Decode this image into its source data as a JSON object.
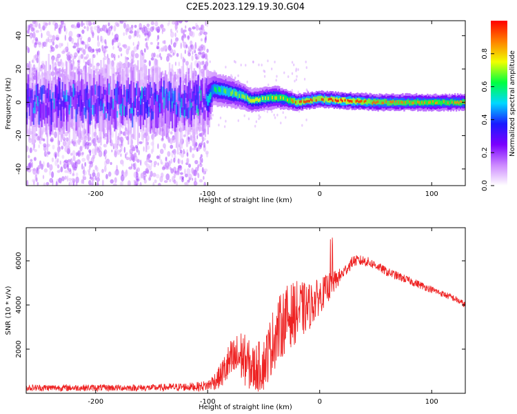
{
  "title": "C2E5.2023.129.19.30.G04",
  "chart_data": [
    {
      "type": "heatmap",
      "xlabel": "Height of straight line (km)",
      "ylabel": "Frequency (Hz)",
      "xlim": [
        -262,
        130
      ],
      "ylim": [
        -50,
        49
      ],
      "x_ticks": [
        -200,
        -100,
        0,
        100
      ],
      "y_ticks": [
        -40,
        -20,
        0,
        20,
        40
      ],
      "grid": false,
      "colorbar": {
        "label": "Normalized spectral amplitude",
        "range": [
          0.0,
          1.0
        ],
        "ticks": [
          0.0,
          0.2,
          0.4,
          0.6,
          0.8
        ],
        "colors": [
          "#ffffff",
          "#cc88ff",
          "#7a00ff",
          "#1a1aff",
          "#00d8ff",
          "#00ff40",
          "#f0ff00",
          "#ff8000",
          "#ff0000"
        ]
      },
      "ridge": {
        "x": [
          -262,
          -200,
          -150,
          -100,
          -95,
          -80,
          -70,
          -60,
          -50,
          -40,
          -30,
          -20,
          0,
          20,
          50,
          100,
          130
        ],
        "center_hz": [
          0,
          0,
          0,
          0,
          8,
          6,
          4,
          1,
          2,
          3,
          2,
          0,
          2,
          1,
          0,
          0,
          0
        ],
        "width_hz": [
          20,
          20,
          20,
          20,
          10,
          9,
          8,
          7,
          7,
          7,
          6,
          5,
          5,
          5,
          5,
          5,
          5
        ],
        "peak_amplitude": [
          0.45,
          0.45,
          0.45,
          0.5,
          0.6,
          0.7,
          0.7,
          0.75,
          0.75,
          0.8,
          0.8,
          0.95,
          0.95,
          1.0,
          0.9,
          0.85,
          0.85
        ],
        "noise_region_x": [
          -262,
          -100
        ]
      }
    },
    {
      "type": "line",
      "xlabel": "Height of straight line (km)",
      "ylabel": "SNR (10 * v/v)",
      "xlim": [
        -262,
        130
      ],
      "ylim": [
        0,
        7500
      ],
      "x_ticks": [
        -200,
        -100,
        0,
        100
      ],
      "y_ticks": [
        2000,
        4000,
        6000
      ],
      "grid": false,
      "series": [
        {
          "color": "#ee2222",
          "x": [
            -262,
            -200,
            -150,
            -110,
            -100,
            -90,
            -80,
            -70,
            -60,
            -50,
            -40,
            -30,
            -20,
            -10,
            0,
            10,
            20,
            30,
            40,
            50,
            60,
            70,
            80,
            90,
            100,
            110,
            120,
            130
          ],
          "values": [
            250,
            250,
            250,
            300,
            350,
            700,
            1400,
            1700,
            1100,
            1300,
            2600,
            3400,
            3700,
            3900,
            4400,
            4900,
            5400,
            6000,
            6000,
            5800,
            5500,
            5300,
            5100,
            4900,
            4700,
            4500,
            4300,
            4000
          ],
          "noise_amplitude": [
            150,
            150,
            150,
            200,
            250,
            500,
            1000,
            1200,
            1100,
            1200,
            1500,
            1500,
            1400,
            1100,
            800,
            600,
            300,
            250,
            250,
            200,
            200,
            200,
            180,
            180,
            150,
            150,
            150,
            150
          ],
          "max_value": 7400
        }
      ]
    }
  ]
}
